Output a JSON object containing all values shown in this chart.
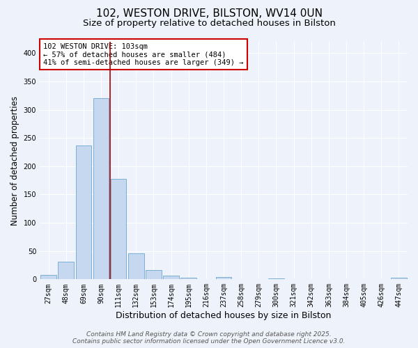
{
  "title1": "102, WESTON DRIVE, BILSTON, WV14 0UN",
  "title2": "Size of property relative to detached houses in Bilston",
  "xlabel": "Distribution of detached houses by size in Bilston",
  "ylabel": "Number of detached properties",
  "categories": [
    "27sqm",
    "48sqm",
    "69sqm",
    "90sqm",
    "111sqm",
    "132sqm",
    "153sqm",
    "174sqm",
    "195sqm",
    "216sqm",
    "237sqm",
    "258sqm",
    "279sqm",
    "300sqm",
    "321sqm",
    "342sqm",
    "363sqm",
    "384sqm",
    "405sqm",
    "426sqm",
    "447sqm"
  ],
  "values": [
    8,
    31,
    237,
    320,
    178,
    46,
    16,
    7,
    3,
    0,
    4,
    0,
    0,
    2,
    0,
    0,
    0,
    0,
    0,
    0,
    3
  ],
  "bar_color": "#c5d8f0",
  "bar_edge_color": "#7bafd4",
  "vline_x": 3.5,
  "vline_color": "#aa0000",
  "annotation_text": "102 WESTON DRIVE: 103sqm\n← 57% of detached houses are smaller (484)\n41% of semi-detached houses are larger (349) →",
  "annotation_box_color": "#ffffff",
  "annotation_box_edge": "#cc0000",
  "ylim": [
    0,
    420
  ],
  "yticks": [
    0,
    50,
    100,
    150,
    200,
    250,
    300,
    350,
    400
  ],
  "footer1": "Contains HM Land Registry data © Crown copyright and database right 2025.",
  "footer2": "Contains public sector information licensed under the Open Government Licence v3.0.",
  "bg_color": "#eef2fa",
  "title1_fontsize": 11,
  "title2_fontsize": 9.5,
  "xlabel_fontsize": 9,
  "ylabel_fontsize": 8.5,
  "tick_fontsize": 7,
  "footer_fontsize": 6.5,
  "annotation_fontsize": 7.5
}
